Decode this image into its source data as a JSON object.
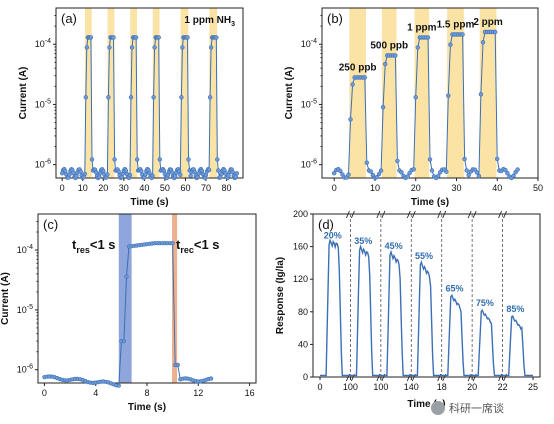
{
  "colors": {
    "series": "#3b6fb6",
    "marker_face": "#6f9ad6",
    "highlight": "#fbe3a6",
    "response_band": "#7b96d6",
    "recovery_band": "#e9a47c",
    "dashed": "#555555"
  },
  "chart_data": [
    {
      "id": "a",
      "panel_label": "(a)",
      "type": "scatter",
      "annotation": "1 ppm NH3",
      "xlabel": "Time (s)",
      "ylabel": "Current (A)",
      "xlim": [
        -3,
        88
      ],
      "ylim_log": [
        6e-07,
        0.0004
      ],
      "yscale": "log",
      "xticks": [
        0,
        10,
        20,
        30,
        40,
        50,
        60,
        70,
        80
      ],
      "xtick_labels": [
        "0",
        "10",
        "20",
        "30",
        "40",
        "50",
        "60",
        "70",
        "80"
      ],
      "yticks": [
        1e-06,
        1e-05,
        0.0001
      ],
      "ytick_labels": [
        "10-6",
        "10-5",
        "10-4"
      ],
      "baseline": 8e-07,
      "on_level": 0.00013,
      "pulses": [
        [
          11.5,
          14
        ],
        [
          22.5,
          25
        ],
        [
          33.5,
          36
        ],
        [
          44.5,
          47
        ],
        [
          58,
          61
        ],
        [
          72,
          75
        ]
      ],
      "t_start": 0,
      "t_end": 85
    },
    {
      "id": "b",
      "panel_label": "(b)",
      "type": "scatter",
      "xlabel": "Time (s)",
      "ylabel": "Current (A)",
      "xlim": [
        -3,
        50
      ],
      "ylim_log": [
        6e-07,
        0.0004
      ],
      "yscale": "log",
      "xticks": [
        0,
        10,
        20,
        30,
        40,
        50
      ],
      "xtick_labels": [
        "0",
        "10",
        "20",
        "30",
        "40",
        "50"
      ],
      "yticks": [
        1e-06,
        1e-05,
        0.0001
      ],
      "ytick_labels": [
        "10-6",
        "10-5",
        "10-4"
      ],
      "baseline": 8e-07,
      "pulses": [
        [
          4,
          7.5
        ],
        [
          12,
          15
        ],
        [
          20,
          23
        ],
        [
          28,
          31.5
        ],
        [
          36,
          39.5
        ]
      ],
      "levels": [
        2.8e-05,
        6.5e-05,
        0.00013,
        0.000145,
        0.00016
      ],
      "labels": [
        "250 ppb",
        "500 ppb",
        "1 ppm",
        "1.5 ppm",
        "2 ppm"
      ],
      "t_start": 0,
      "t_end": 45
    },
    {
      "id": "c",
      "panel_label": "(c)",
      "type": "scatter",
      "xlabel": "Time (s)",
      "ylabel": "Current (A)",
      "xlim": [
        -0.5,
        16.5
      ],
      "ylim_log": [
        6e-07,
        0.0004
      ],
      "yscale": "log",
      "xticks": [
        0,
        4,
        8,
        12,
        16
      ],
      "xtick_labels": [
        "0",
        "4",
        "8",
        "12",
        "16"
      ],
      "yticks": [
        1e-06,
        1e-05,
        0.0001
      ],
      "ytick_labels": [
        "10-6",
        "10-5",
        "10-4"
      ],
      "baseline": 7.5e-07,
      "on_level": 0.00013,
      "on_start": 6.0,
      "off_start": 10.1,
      "t_start": 0,
      "t_end": 13,
      "res_band": [
        5.8,
        6.8
      ],
      "rec_band": [
        9.95,
        10.35
      ],
      "t_res": "res",
      "t_rec": "rec",
      "t_res_text": "<1 s",
      "t_rec_text": "<1 s",
      "t_prefix": "t"
    },
    {
      "id": "d",
      "panel_label": "(d)",
      "type": "line",
      "xlabel": "Time (s)",
      "ylabel": "Response (Ig/Ia)",
      "ylim": [
        0,
        200
      ],
      "yticks": [
        0,
        40,
        80,
        120,
        160,
        200
      ],
      "ytick_labels": [
        "0",
        "40",
        "80",
        "120",
        "160",
        "200"
      ],
      "xtick_labels": [
        "0",
        "100",
        "100",
        "140",
        "18",
        "20",
        "22",
        "25"
      ],
      "peaks": [
        165,
        158,
        152,
        140,
        100,
        82,
        75
      ],
      "labels": [
        "20%",
        "35%",
        "45%",
        "55%",
        "65%",
        "75%",
        "85%"
      ]
    }
  ],
  "watermark": "科研一席谈"
}
